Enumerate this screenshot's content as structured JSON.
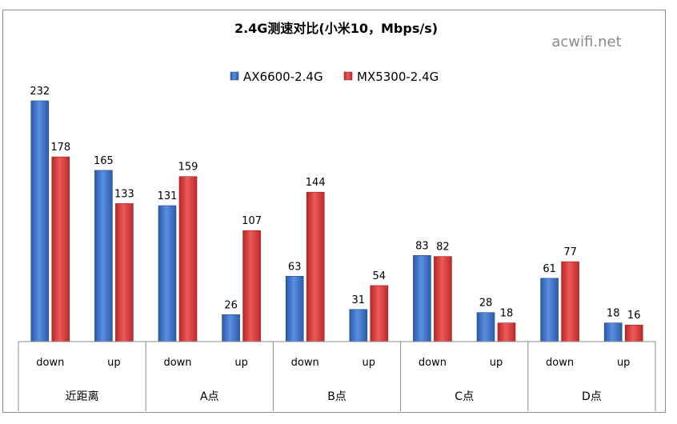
{
  "watermark": "acwifi.net",
  "chart_data": {
    "type": "bar",
    "title": "2.4G测速对比(小米10，Mbps/s)",
    "xlabel": "",
    "ylabel": "",
    "ylim": [
      0,
      240
    ],
    "grid": false,
    "legend_position": "top-center",
    "groups": [
      {
        "label": "近距离",
        "categories": [
          "down",
          "up"
        ]
      },
      {
        "label": "A点",
        "categories": [
          "down",
          "up"
        ]
      },
      {
        "label": "B点",
        "categories": [
          "down",
          "up"
        ]
      },
      {
        "label": "C点",
        "categories": [
          "down",
          "up"
        ]
      },
      {
        "label": "D点",
        "categories": [
          "down",
          "up"
        ]
      }
    ],
    "series": [
      {
        "name": "AX6600-2.4G",
        "color": "#3b6fc4",
        "values": [
          232,
          165,
          131,
          26,
          63,
          31,
          83,
          28,
          61,
          18
        ]
      },
      {
        "name": "MX5300-2.4G",
        "color": "#d63a3a",
        "values": [
          178,
          133,
          159,
          107,
          144,
          54,
          82,
          18,
          77,
          16
        ]
      }
    ]
  }
}
